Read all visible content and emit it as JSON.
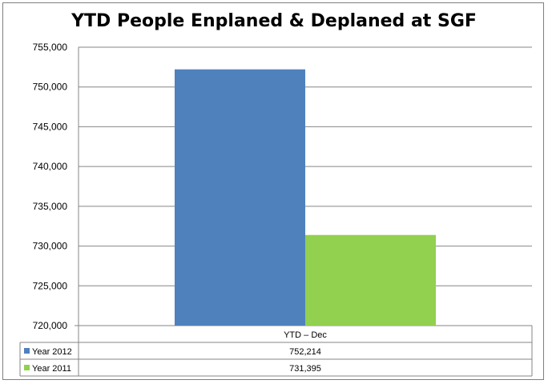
{
  "chart_data": {
    "type": "bar",
    "title": "YTD People Enplaned & Deplaned at SGF",
    "categories": [
      "YTD – Dec"
    ],
    "series": [
      {
        "name": "Year 2012",
        "values": [
          752214
        ],
        "value_label": "752,214",
        "color": "#4f81bd"
      },
      {
        "name": "Year 2011",
        "values": [
          731395
        ],
        "value_label": "731,395",
        "color": "#92d050"
      }
    ],
    "ylim": [
      720000,
      755000
    ],
    "yticks": [
      720000,
      725000,
      730000,
      735000,
      740000,
      745000,
      750000,
      755000
    ],
    "ytick_labels": [
      "720,000",
      "725,000",
      "730,000",
      "735,000",
      "740,000",
      "745,000",
      "750,000",
      "755,000"
    ],
    "grid": true,
    "legend": "data-table"
  }
}
